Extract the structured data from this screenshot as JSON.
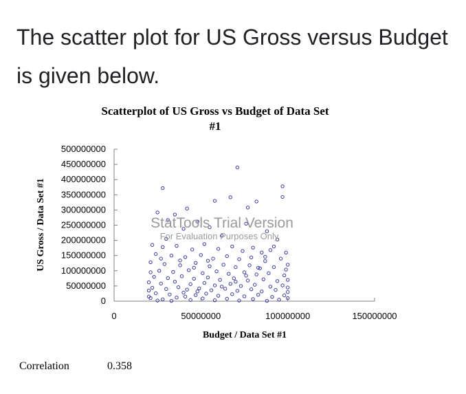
{
  "intro_text": "The scatter plot for US Gross versus Budget is given below.",
  "watermark": {
    "line1": "StatTools Trial Version",
    "line2": "For Evaluation Purposes Only"
  },
  "correlation": {
    "label": "Correlation",
    "value": "0.358"
  },
  "colors": {
    "points": "#3a3aa0",
    "text": "#202124",
    "watermark": "#9a9a9a"
  },
  "chart_data": {
    "type": "scatter",
    "title": "Scatterplot of US Gross vs Budget of Data Set #1",
    "title_lines": [
      "Scatterplot of US Gross vs Budget of Data Set",
      "#1"
    ],
    "xlabel": "Budget / Data Set #1",
    "ylabel": "US Gross / Data Set #1",
    "xlim": [
      0,
      150000000
    ],
    "ylim": [
      0,
      500000000
    ],
    "x_ticks": [
      0,
      50000000,
      100000000,
      150000000
    ],
    "x_tick_labels": [
      "0",
      "50000000",
      "100000000",
      "150000000"
    ],
    "y_ticks": [
      0,
      50000000,
      100000000,
      150000000,
      200000000,
      250000000,
      300000000,
      350000000,
      400000000,
      450000000,
      500000000
    ],
    "y_tick_labels": [
      "0",
      "50000000",
      "100000000",
      "150000000",
      "200000000",
      "250000000",
      "300000000",
      "350000000",
      "400000000",
      "450000000",
      "500000000"
    ],
    "grid": false,
    "points": [
      {
        "x": 71000000,
        "y": 440000000
      },
      {
        "x": 28000000,
        "y": 372000000
      },
      {
        "x": 97000000,
        "y": 378000000
      },
      {
        "x": 97000000,
        "y": 343000000
      },
      {
        "x": 58000000,
        "y": 330000000
      },
      {
        "x": 82000000,
        "y": 328000000
      },
      {
        "x": 77000000,
        "y": 308000000
      },
      {
        "x": 67000000,
        "y": 342000000
      },
      {
        "x": 42000000,
        "y": 305000000
      },
      {
        "x": 35000000,
        "y": 285000000
      },
      {
        "x": 25000000,
        "y": 292000000
      },
      {
        "x": 31000000,
        "y": 267000000
      },
      {
        "x": 48000000,
        "y": 262000000
      },
      {
        "x": 40000000,
        "y": 238000000
      },
      {
        "x": 55000000,
        "y": 243000000
      },
      {
        "x": 76000000,
        "y": 255000000
      },
      {
        "x": 88000000,
        "y": 230000000
      },
      {
        "x": 62000000,
        "y": 215000000
      },
      {
        "x": 94000000,
        "y": 203000000
      },
      {
        "x": 30000000,
        "y": 205000000
      },
      {
        "x": 22000000,
        "y": 185000000
      },
      {
        "x": 28000000,
        "y": 178000000
      },
      {
        "x": 36000000,
        "y": 182000000
      },
      {
        "x": 45000000,
        "y": 170000000
      },
      {
        "x": 52000000,
        "y": 188000000
      },
      {
        "x": 60000000,
        "y": 172000000
      },
      {
        "x": 68000000,
        "y": 180000000
      },
      {
        "x": 74000000,
        "y": 165000000
      },
      {
        "x": 80000000,
        "y": 176000000
      },
      {
        "x": 85000000,
        "y": 160000000
      },
      {
        "x": 90000000,
        "y": 168000000
      },
      {
        "x": 24000000,
        "y": 155000000
      },
      {
        "x": 33000000,
        "y": 150000000
      },
      {
        "x": 41000000,
        "y": 145000000
      },
      {
        "x": 50000000,
        "y": 152000000
      },
      {
        "x": 57000000,
        "y": 140000000
      },
      {
        "x": 65000000,
        "y": 148000000
      },
      {
        "x": 72000000,
        "y": 138000000
      },
      {
        "x": 79000000,
        "y": 144000000
      },
      {
        "x": 87000000,
        "y": 132000000
      },
      {
        "x": 96000000,
        "y": 140000000
      },
      {
        "x": 21000000,
        "y": 128000000
      },
      {
        "x": 29000000,
        "y": 122000000
      },
      {
        "x": 38000000,
        "y": 118000000
      },
      {
        "x": 47000000,
        "y": 126000000
      },
      {
        "x": 55000000,
        "y": 115000000
      },
      {
        "x": 63000000,
        "y": 120000000
      },
      {
        "x": 70000000,
        "y": 112000000
      },
      {
        "x": 78000000,
        "y": 118000000
      },
      {
        "x": 84000000,
        "y": 108000000
      },
      {
        "x": 92000000,
        "y": 112000000
      },
      {
        "x": 99000000,
        "y": 104000000
      },
      {
        "x": 26000000,
        "y": 100000000
      },
      {
        "x": 34000000,
        "y": 96000000
      },
      {
        "x": 43000000,
        "y": 102000000
      },
      {
        "x": 51000000,
        "y": 92000000
      },
      {
        "x": 59000000,
        "y": 98000000
      },
      {
        "x": 66000000,
        "y": 90000000
      },
      {
        "x": 75000000,
        "y": 95000000
      },
      {
        "x": 82000000,
        "y": 88000000
      },
      {
        "x": 89000000,
        "y": 92000000
      },
      {
        "x": 98000000,
        "y": 85000000
      },
      {
        "x": 23000000,
        "y": 80000000
      },
      {
        "x": 31000000,
        "y": 76000000
      },
      {
        "x": 39000000,
        "y": 82000000
      },
      {
        "x": 46000000,
        "y": 74000000
      },
      {
        "x": 54000000,
        "y": 78000000
      },
      {
        "x": 61000000,
        "y": 70000000
      },
      {
        "x": 69000000,
        "y": 75000000
      },
      {
        "x": 77000000,
        "y": 68000000
      },
      {
        "x": 86000000,
        "y": 72000000
      },
      {
        "x": 94000000,
        "y": 66000000
      },
      {
        "x": 20000000,
        "y": 62000000
      },
      {
        "x": 27000000,
        "y": 58000000
      },
      {
        "x": 35000000,
        "y": 64000000
      },
      {
        "x": 44000000,
        "y": 56000000
      },
      {
        "x": 52000000,
        "y": 60000000
      },
      {
        "x": 58000000,
        "y": 52000000
      },
      {
        "x": 67000000,
        "y": 57000000
      },
      {
        "x": 73000000,
        "y": 50000000
      },
      {
        "x": 81000000,
        "y": 54000000
      },
      {
        "x": 90000000,
        "y": 48000000
      },
      {
        "x": 97000000,
        "y": 52000000
      },
      {
        "x": 22000000,
        "y": 44000000
      },
      {
        "x": 30000000,
        "y": 40000000
      },
      {
        "x": 37000000,
        "y": 46000000
      },
      {
        "x": 42000000,
        "y": 38000000
      },
      {
        "x": 49000000,
        "y": 42000000
      },
      {
        "x": 56000000,
        "y": 36000000
      },
      {
        "x": 64000000,
        "y": 41000000
      },
      {
        "x": 71000000,
        "y": 34000000
      },
      {
        "x": 79000000,
        "y": 39000000
      },
      {
        "x": 85000000,
        "y": 32000000
      },
      {
        "x": 93000000,
        "y": 37000000
      },
      {
        "x": 100000000,
        "y": 30000000
      },
      {
        "x": 24000000,
        "y": 26000000
      },
      {
        "x": 32000000,
        "y": 22000000
      },
      {
        "x": 40000000,
        "y": 28000000
      },
      {
        "x": 47000000,
        "y": 20000000
      },
      {
        "x": 53000000,
        "y": 25000000
      },
      {
        "x": 60000000,
        "y": 18000000
      },
      {
        "x": 68000000,
        "y": 23000000
      },
      {
        "x": 75000000,
        "y": 16000000
      },
      {
        "x": 83000000,
        "y": 21000000
      },
      {
        "x": 91000000,
        "y": 14000000
      },
      {
        "x": 98000000,
        "y": 19000000
      },
      {
        "x": 21000000,
        "y": 10000000
      },
      {
        "x": 28000000,
        "y": 6000000
      },
      {
        "x": 36000000,
        "y": 12000000
      },
      {
        "x": 44000000,
        "y": 4000000
      },
      {
        "x": 51000000,
        "y": 9000000
      },
      {
        "x": 58000000,
        "y": 3000000
      },
      {
        "x": 65000000,
        "y": 8000000
      },
      {
        "x": 72000000,
        "y": 2000000
      },
      {
        "x": 80000000,
        "y": 7000000
      },
      {
        "x": 88000000,
        "y": 1000000
      },
      {
        "x": 95000000,
        "y": 5000000
      },
      {
        "x": 25000000,
        "y": 2000000
      },
      {
        "x": 33000000,
        "y": 1000000
      },
      {
        "x": 41000000,
        "y": 15000000
      },
      {
        "x": 48000000,
        "y": 32000000
      },
      {
        "x": 62000000,
        "y": 48000000
      },
      {
        "x": 70000000,
        "y": 64000000
      },
      {
        "x": 76000000,
        "y": 84000000
      },
      {
        "x": 83000000,
        "y": 110000000
      },
      {
        "x": 87000000,
        "y": 146000000
      },
      {
        "x": 92000000,
        "y": 180000000
      },
      {
        "x": 99000000,
        "y": 160000000
      },
      {
        "x": 100000000,
        "y": 120000000
      },
      {
        "x": 100000000,
        "y": 70000000
      },
      {
        "x": 100000000,
        "y": 45000000
      },
      {
        "x": 100000000,
        "y": 10000000
      },
      {
        "x": 54000000,
        "y": 133000000
      },
      {
        "x": 46000000,
        "y": 110000000
      },
      {
        "x": 38000000,
        "y": 134000000
      },
      {
        "x": 27000000,
        "y": 140000000
      },
      {
        "x": 21000000,
        "y": 95000000
      },
      {
        "x": 20000000,
        "y": 35000000
      },
      {
        "x": 20000000,
        "y": 15000000
      }
    ]
  }
}
